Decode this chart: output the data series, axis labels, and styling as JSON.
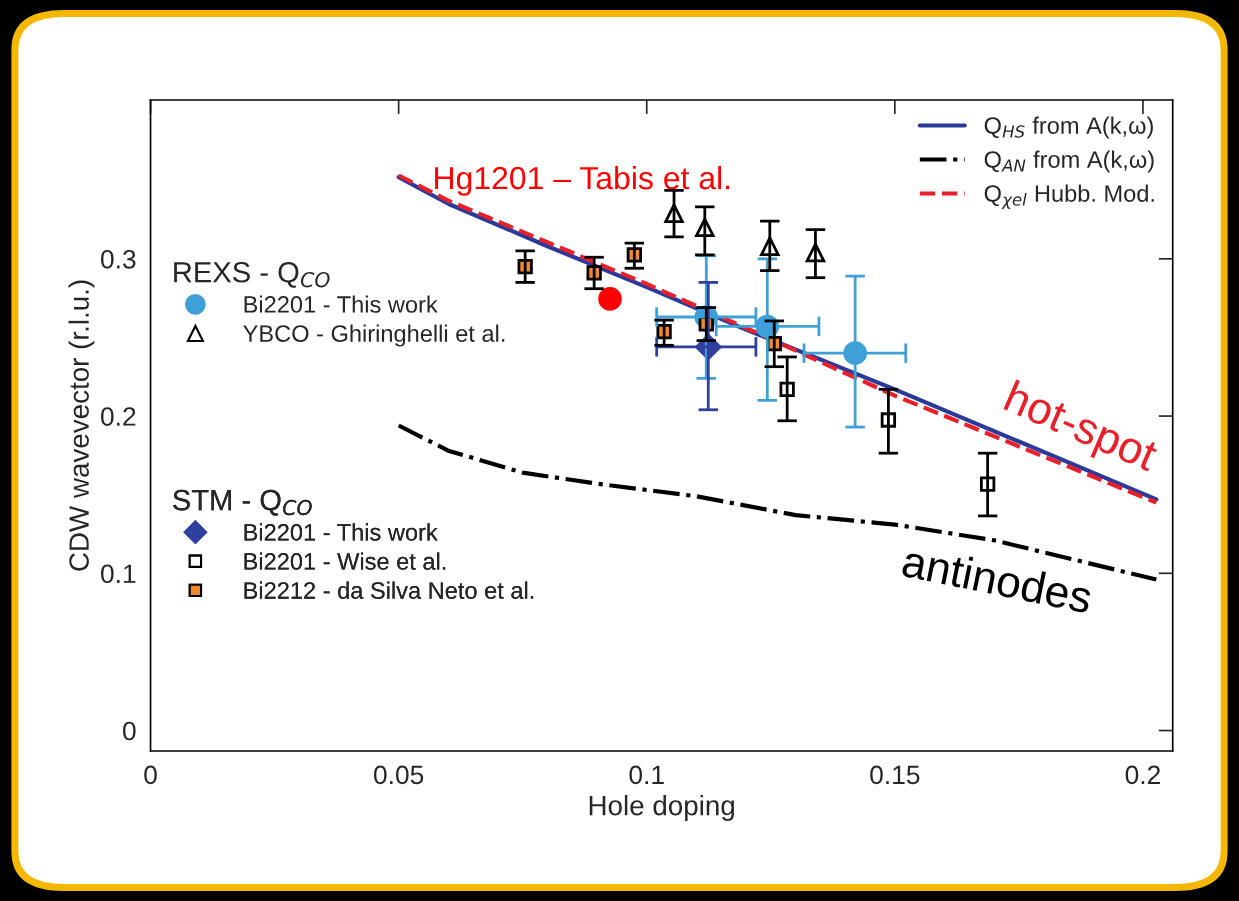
{
  "chart_data": {
    "type": "scatter",
    "xlabel": "Hole doping",
    "ylabel": "CDW wavevector (r.l.u.)",
    "xlim": [
      0,
      0.206
    ],
    "ylim": [
      -0.013,
      0.401
    ],
    "xticks": [
      0,
      0.05,
      0.1,
      0.15,
      0.2
    ],
    "yticks": [
      0,
      0.1,
      0.2,
      0.3
    ],
    "grid": false,
    "legend": "top right",
    "legend_title": "REXS - Q$_{CO}$",
    "annotations": [
      "STM - Q$_{CO}$",
      {
        "text": "hot-spot",
        "x": 0.184,
        "y": 0.169
      },
      {
        "text": "antinodes",
        "x": 0.172,
        "y": 0.118
      }
    ],
    "series": [
      {
        "name": "Q$_{HS}$ from A(k,ω)",
        "type": "line",
        "color": "#2b3a9a",
        "line_style": "solid",
        "marker": "none",
        "x": [
          0.05,
          0.06,
          0.08,
          0.1,
          0.12,
          0.15,
          0.2027
        ],
        "values": [
          0.352,
          0.335,
          0.308,
          0.282,
          0.255,
          0.217,
          0.147
        ]
      },
      {
        "name": "Q$_{AN}$ from A(k,ω)",
        "type": "line",
        "color": "#000000",
        "line_style": "dashdot",
        "marker": "none",
        "x": [
          0.05,
          0.06,
          0.075,
          0.09,
          0.11,
          0.13,
          0.15,
          0.17,
          0.2027
        ],
        "values": [
          0.194,
          0.178,
          0.164,
          0.157,
          0.149,
          0.137,
          0.131,
          0.121,
          0.096
        ]
      },
      {
        "name": "Q$_{χel}$ Hubb. Mod.",
        "type": "line",
        "color": "#e8202a",
        "line_style": "dashed",
        "marker": "none",
        "x": [
          0.05,
          0.06,
          0.1,
          0.12,
          0.15,
          0.2027
        ],
        "values": [
          0.353,
          0.337,
          0.284,
          0.256,
          0.213,
          0.145
        ]
      },
      {
        "name": "Bi2201 - This work",
        "color": "#3fa0d8",
        "marker": "circle",
        "x": [
          0.112,
          0.1243,
          0.142
        ],
        "values": [
          0.263,
          0.257,
          0.24
        ],
        "errors": [
          [
            0.224,
            0.302
          ],
          [
            0.21,
            0.3
          ],
          [
            0.193,
            0.289
          ]
        ],
        "xerrors": [
          [
            0.102,
            0.122
          ],
          [
            0.114,
            0.1347
          ],
          [
            0.1317,
            0.1522
          ]
        ]
      },
      {
        "name": "YBCO - Ghiringhelli et al.",
        "color": "#ffffff",
        "marker": "triangle",
        "x": [
          0.1055,
          0.1117,
          0.1248,
          0.134
        ],
        "values": [
          0.329,
          0.32,
          0.308,
          0.304
        ],
        "errors": [
          [
            0.314,
            0.3435
          ],
          [
            0.3025,
            0.333
          ],
          [
            0.2925,
            0.324
          ],
          [
            0.288,
            0.3185
          ]
        ]
      },
      {
        "name": "Bi2201 - This work",
        "color": "#2e3f9e",
        "marker": "diamond",
        "x": [
          0.1124
        ],
        "values": [
          0.244
        ],
        "errors": [
          [
            0.204,
            0.285
          ]
        ],
        "xerrors": [
          [
            0.102,
            0.122
          ]
        ]
      },
      {
        "name": "Bi2201 - Wise et al.",
        "color": "#ffffff",
        "marker": "square",
        "x": [
          0.1283,
          0.1487,
          0.1687
        ],
        "values": [
          0.217,
          0.1975,
          0.1567
        ],
        "errors": [
          [
            0.197,
            0.2376
          ],
          [
            0.1764,
            0.217
          ],
          [
            0.1365,
            0.1764
          ]
        ]
      },
      {
        "name": "Bi2212 - da Silva Neto et al.",
        "color": "#f28a2a",
        "marker": "square",
        "x": [
          0.0755,
          0.0894,
          0.0975,
          0.1035,
          0.112,
          0.1257
        ],
        "values": [
          0.295,
          0.291,
          0.3025,
          0.2537,
          0.2586,
          0.246
        ],
        "errors": [
          [
            0.285,
            0.305
          ],
          [
            0.281,
            0.301
          ],
          [
            0.294,
            0.31
          ],
          [
            0.245,
            0.261
          ],
          [
            0.248,
            0.269
          ],
          [
            0.2314,
            0.2605
          ]
        ]
      },
      {
        "name": "Hg1201 – Tabis et al.",
        "color": "#ff0000",
        "marker": "circle",
        "x": [
          0.0926
        ],
        "values": [
          0.2745
        ]
      }
    ]
  }
}
